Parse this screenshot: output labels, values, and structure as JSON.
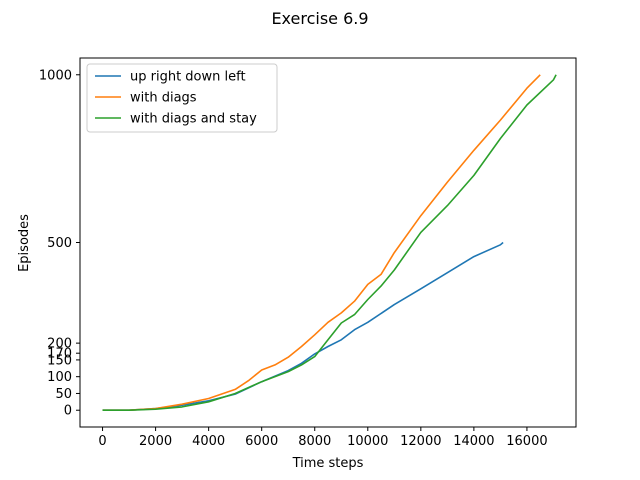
{
  "chart_data": {
    "type": "line",
    "title": "Exercise 6.9",
    "xlabel": "Time steps",
    "ylabel": "Episodes",
    "xlim": [
      -850,
      17850
    ],
    "ylim": [
      -50,
      1050
    ],
    "xticks": [
      0,
      2000,
      4000,
      6000,
      8000,
      10000,
      12000,
      14000,
      16000
    ],
    "xtick_labels": [
      "0",
      "2000",
      "4000",
      "6000",
      "8000",
      "10000",
      "12000",
      "14000",
      "16000"
    ],
    "yticks": [
      0,
      50,
      100,
      150,
      170,
      200,
      500,
      1000
    ],
    "ytick_labels": [
      "0",
      "50",
      "100",
      "150",
      "170",
      "200",
      "500",
      "1000"
    ],
    "grid": false,
    "legend_position": "upper-left",
    "series": [
      {
        "name": "up right down left",
        "color": "#1f77b4",
        "x": [
          0,
          1000,
          2000,
          3000,
          4000,
          5000,
          6000,
          7000,
          7500,
          8000,
          8500,
          9000,
          9500,
          10000,
          11000,
          12000,
          13000,
          14000,
          15000,
          15100
        ],
        "y": [
          0,
          0,
          5,
          15,
          28,
          48,
          85,
          118,
          140,
          168,
          190,
          210,
          240,
          262,
          315,
          362,
          410,
          458,
          493,
          500
        ]
      },
      {
        "name": "with diags",
        "color": "#ff7f0e",
        "x": [
          0,
          1000,
          2000,
          3000,
          4000,
          5000,
          5500,
          6000,
          6500,
          7000,
          7500,
          8000,
          8500,
          9000,
          9500,
          10000,
          10500,
          11000,
          12000,
          13000,
          14000,
          15000,
          16000,
          16500
        ],
        "y": [
          0,
          0,
          5,
          18,
          35,
          62,
          88,
          120,
          135,
          158,
          190,
          225,
          262,
          290,
          325,
          375,
          405,
          470,
          580,
          680,
          775,
          865,
          960,
          1000
        ]
      },
      {
        "name": "with diags and stay",
        "color": "#2ca02c",
        "x": [
          0,
          1000,
          2000,
          3000,
          4000,
          5000,
          6000,
          7000,
          7500,
          8000,
          8500,
          9000,
          9500,
          10000,
          10500,
          11000,
          12000,
          13000,
          14000,
          15000,
          16000,
          17000,
          17100
        ],
        "y": [
          0,
          0,
          3,
          10,
          25,
          50,
          85,
          115,
          135,
          160,
          210,
          260,
          285,
          330,
          370,
          418,
          530,
          610,
          700,
          810,
          910,
          985,
          1000
        ]
      }
    ]
  }
}
